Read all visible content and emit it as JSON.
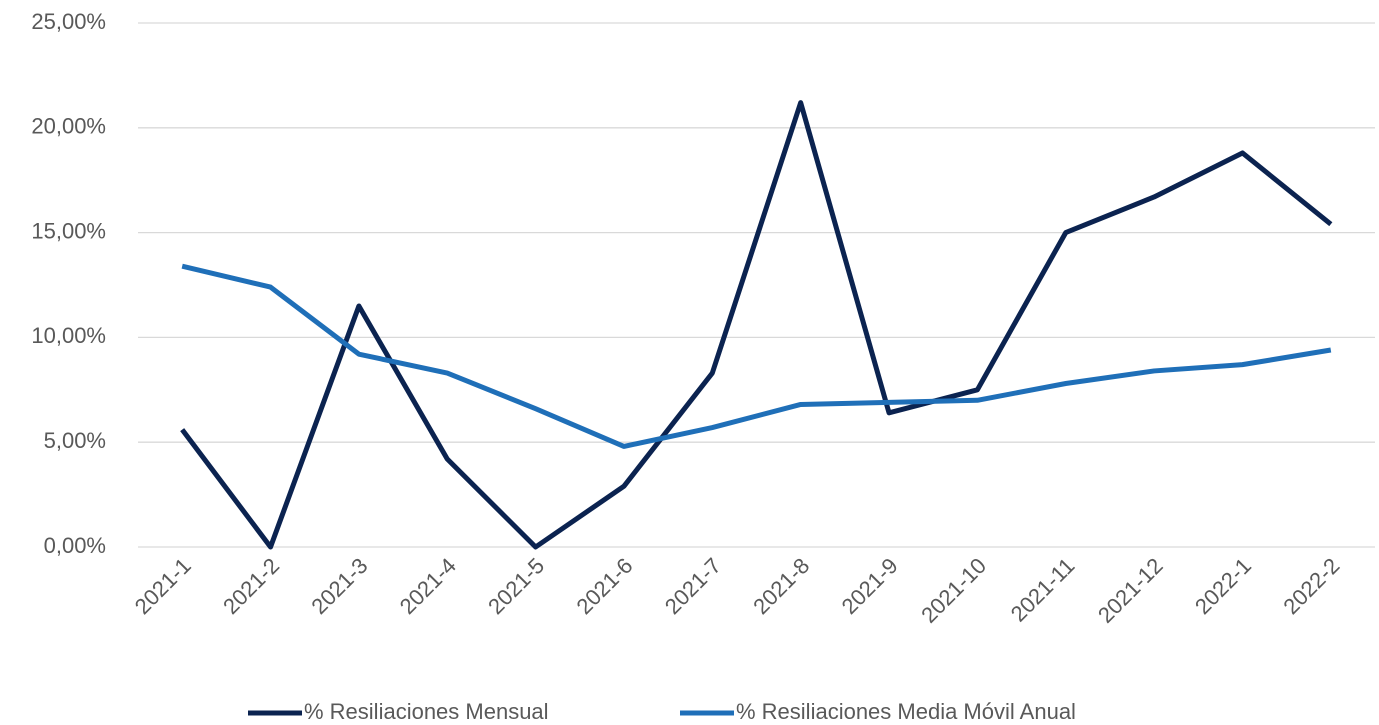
{
  "chart_data": {
    "type": "line",
    "categories": [
      "2021-1",
      "2021-2",
      "2021-3",
      "2021-4",
      "2021-5",
      "2021-6",
      "2021-7",
      "2021-8",
      "2021-9",
      "2021-10",
      "2021-11",
      "2021-12",
      "2022-1",
      "2022-2"
    ],
    "series": [
      {
        "name": "% Resiliaciones Mensual",
        "color": "#0b2350",
        "values": [
          5.6,
          0,
          11.5,
          4.2,
          0,
          2.9,
          8.3,
          21.2,
          6.4,
          7.5,
          15.0,
          16.7,
          18.8,
          15.4
        ]
      },
      {
        "name": "% Resiliaciones Media Móvil Anual",
        "color": "#1f6fb8",
        "values": [
          13.4,
          12.4,
          9.2,
          8.3,
          6.6,
          4.8,
          5.7,
          6.8,
          6.9,
          7.0,
          7.8,
          8.4,
          8.7,
          9.4
        ]
      }
    ],
    "ylim": [
      0,
      25
    ],
    "yticks": [
      {
        "value": 0,
        "label": "0,00%"
      },
      {
        "value": 5,
        "label": "5,00%"
      },
      {
        "value": 10,
        "label": "10,00%"
      },
      {
        "value": 15,
        "label": "15,00%"
      },
      {
        "value": 20,
        "label": "20,00%"
      },
      {
        "value": 25,
        "label": "25,00%"
      }
    ],
    "grid": true,
    "legend": "bottom"
  }
}
